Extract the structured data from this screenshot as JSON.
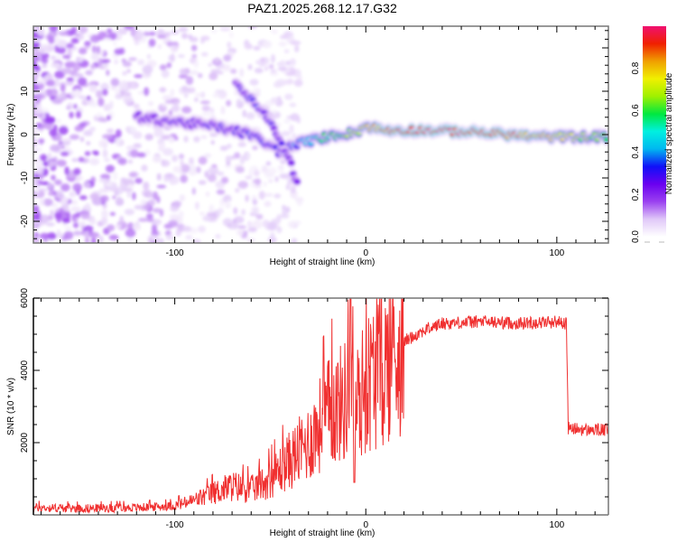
{
  "title": "PAZ1.2025.268.12.17.G32",
  "chart_data": [
    {
      "type": "heatmap",
      "name": "spectrogram",
      "xlabel": "Height of straight line (km)",
      "ylabel": "Frequency (Hz)",
      "xlim": [
        -174,
        127
      ],
      "ylim": [
        -25,
        25
      ],
      "xticks": [
        -100,
        0,
        100
      ],
      "xtick_labels": [
        "-100",
        "0",
        "100"
      ],
      "yticks": [
        -20,
        -10,
        0,
        10,
        20
      ],
      "ytick_labels": [
        "-20",
        "-10",
        "0",
        "10",
        "20"
      ],
      "colorbar": {
        "label": "Normalized spectral amplitude",
        "range": [
          0,
          1
        ],
        "ticks": [
          0.0,
          0.2,
          0.4,
          0.6,
          0.8
        ],
        "tick_labels": [
          "0.0",
          "0.2",
          "0.4",
          "0.6",
          "0.8"
        ],
        "colormap": [
          "#ffffff",
          "#e0c8f8",
          "#9a40f0",
          "#6a00f0",
          "#1010f8",
          "#00b8f0",
          "#00f0e0",
          "#00e840",
          "#a0f000",
          "#f0f000",
          "#f0a000",
          "#f02000",
          "#f01070"
        ]
      },
      "ridge": {
        "description_points_km": [
          -120,
          -100,
          -80,
          -60,
          -45,
          -35,
          -25,
          -15,
          -5,
          0,
          10,
          30,
          60,
          90,
          127
        ],
        "frequency_hz": [
          4,
          3,
          2,
          0,
          -4,
          -2,
          -1,
          0,
          0.5,
          2,
          1,
          1,
          0.5,
          -0.5,
          -0.5
        ],
        "amplitude": [
          0.2,
          0.25,
          0.25,
          0.3,
          0.3,
          0.4,
          0.55,
          0.6,
          0.7,
          0.75,
          0.85,
          0.95,
          0.95,
          0.8,
          0.6
        ]
      },
      "branch": {
        "x_km": [
          -68,
          -60,
          -52,
          -45,
          -40,
          -36
        ],
        "frequency_hz": [
          12,
          8,
          4,
          -1,
          -6,
          -11
        ],
        "amplitude": [
          0.25,
          0.3,
          0.3,
          0.25,
          0.25,
          0.2
        ]
      }
    },
    {
      "type": "line",
      "name": "snr",
      "xlabel": "Height of straight line (km)",
      "ylabel": "SNR (10 * v/v)",
      "xlim": [
        -174,
        127
      ],
      "ylim": [
        0,
        6000
      ],
      "xticks": [
        -100,
        0,
        100
      ],
      "xtick_labels": [
        "-100",
        "0",
        "100"
      ],
      "yticks": [
        2000,
        4000,
        6000
      ],
      "ytick_labels": [
        "2000",
        "4000",
        "6000"
      ],
      "color": "#f03030",
      "series": [
        {
          "name": "SNR",
          "x": [
            -174,
            -150,
            -120,
            -100,
            -90,
            -80,
            -70,
            -60,
            -50,
            -40,
            -30,
            -20,
            -10,
            -5,
            0,
            10,
            20,
            30,
            40,
            60,
            80,
            100,
            105,
            106,
            115,
            127
          ],
          "y": [
            200,
            180,
            200,
            250,
            400,
            600,
            800,
            700,
            1000,
            1500,
            2000,
            2800,
            3200,
            3000,
            3600,
            4200,
            4800,
            5100,
            5300,
            5350,
            5300,
            5350,
            5300,
            2400,
            2350,
            2350
          ]
        }
      ]
    }
  ]
}
